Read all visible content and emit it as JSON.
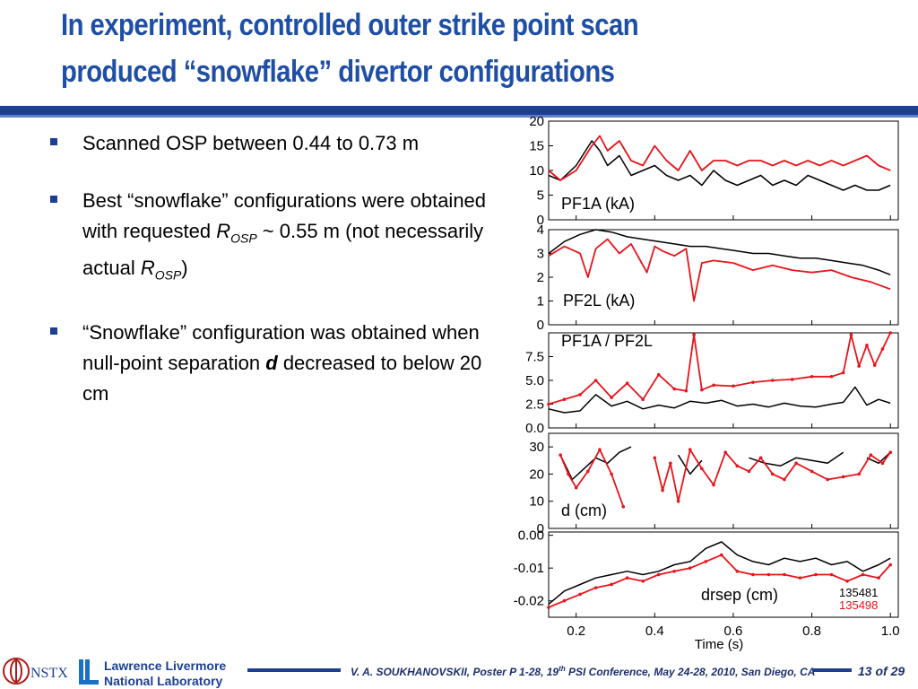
{
  "slide": {
    "title_line1": "In experiment, controlled outer strike point scan",
    "title_line2": "produced “snowflake” divertor configurations",
    "bullets": [
      {
        "text": "Scanned OSP between 0.44 to 0.73 m"
      },
      {
        "text_pre": "Best “snowflake” configurations were obtained with requested ",
        "sym1": "R",
        "sub1": "OSP",
        "text_mid": " ~ 0.55 m (not necessarily actual ",
        "sym2": "R",
        "sub2": "OSP",
        "text_post": ")"
      },
      {
        "text_pre": "“Snowflake” configuration was obtained when null-point separation ",
        "sym": "d",
        "text_post": " decreased to below 20 cm"
      }
    ],
    "footer": {
      "author": "V. A. SOUKHANOVSKII, Poster P 1-28, 19",
      "sup": "th",
      "rest": " PSI Conference, May 24-28, 2010, San Diego, CA",
      "page": "13 of 29"
    },
    "logos": {
      "nstx": "NSTX",
      "llnl_line1": "Lawrence Livermore",
      "llnl_line2": "National Laboratory"
    },
    "colors": {
      "title": "#1f4ea5",
      "bar": "#1c3f94",
      "red": "#e8141b",
      "black": "#000000"
    }
  },
  "chart_data": {
    "type": "line",
    "xlabel": "Time (s)",
    "xlim": [
      0.13,
      1.02
    ],
    "xticks": [
      "0.2",
      "0.4",
      "0.6",
      "0.8",
      "1.0"
    ],
    "shots": [
      "135481",
      "135498"
    ],
    "panels": [
      {
        "label": "PF1A (kA)",
        "ylim": [
          0,
          20
        ],
        "yticks": [
          "0",
          "5",
          "10",
          "15",
          "20"
        ],
        "series": [
          {
            "name": "135481",
            "color": "black",
            "x": [
              0.13,
              0.16,
              0.2,
              0.24,
              0.26,
              0.28,
              0.31,
              0.34,
              0.37,
              0.4,
              0.43,
              0.46,
              0.49,
              0.52,
              0.55,
              0.58,
              0.61,
              0.64,
              0.67,
              0.7,
              0.73,
              0.76,
              0.79,
              0.82,
              0.85,
              0.88,
              0.91,
              0.94,
              0.97,
              1.0
            ],
            "y": [
              9,
              8,
              11,
              16,
              14,
              11,
              13,
              9,
              10,
              11,
              9,
              8,
              9,
              7,
              10,
              8,
              7,
              8,
              9,
              7,
              8,
              7,
              9,
              8,
              7,
              6,
              7,
              6,
              6,
              7
            ]
          },
          {
            "name": "135498",
            "color": "red",
            "x": [
              0.13,
              0.16,
              0.2,
              0.24,
              0.26,
              0.28,
              0.31,
              0.34,
              0.37,
              0.4,
              0.43,
              0.46,
              0.49,
              0.52,
              0.55,
              0.58,
              0.61,
              0.64,
              0.67,
              0.7,
              0.73,
              0.76,
              0.79,
              0.82,
              0.85,
              0.88,
              0.91,
              0.94,
              0.97,
              1.0
            ],
            "y": [
              10,
              8,
              10,
              15,
              17,
              14,
              16,
              12,
              11,
              15,
              12,
              10,
              14,
              10,
              12,
              12,
              11,
              12,
              12,
              11,
              12,
              11,
              12,
              11,
              12,
              11,
              12,
              13,
              11,
              10
            ]
          }
        ]
      },
      {
        "label": "PF2L (kA)",
        "ylim": [
          0,
          4
        ],
        "yticks": [
          "0",
          "1",
          "2",
          "3",
          "4"
        ],
        "series": [
          {
            "name": "135481",
            "color": "black",
            "x": [
              0.13,
              0.17,
              0.21,
              0.25,
              0.29,
              0.33,
              0.37,
              0.41,
              0.45,
              0.49,
              0.53,
              0.57,
              0.61,
              0.65,
              0.69,
              0.73,
              0.77,
              0.81,
              0.85,
              0.89,
              0.93,
              0.97,
              1.0
            ],
            "y": [
              3.0,
              3.5,
              3.8,
              4.0,
              3.9,
              3.7,
              3.6,
              3.5,
              3.4,
              3.3,
              3.3,
              3.2,
              3.1,
              3.0,
              3.0,
              2.9,
              2.8,
              2.8,
              2.7,
              2.6,
              2.5,
              2.3,
              2.1
            ]
          },
          {
            "name": "135498",
            "color": "red",
            "x": [
              0.13,
              0.17,
              0.21,
              0.23,
              0.25,
              0.28,
              0.31,
              0.34,
              0.38,
              0.4,
              0.42,
              0.45,
              0.48,
              0.5,
              0.52,
              0.55,
              0.6,
              0.65,
              0.7,
              0.75,
              0.8,
              0.85,
              0.9,
              0.95,
              1.0
            ],
            "y": [
              2.9,
              3.3,
              3.0,
              2.0,
              3.2,
              3.6,
              3.0,
              3.4,
              2.2,
              3.3,
              3.1,
              2.9,
              3.2,
              1.0,
              2.6,
              2.7,
              2.6,
              2.3,
              2.5,
              2.3,
              2.2,
              2.3,
              2.0,
              1.8,
              1.5
            ]
          }
        ]
      },
      {
        "label": "PF1A / PF2L",
        "ylim": [
          0,
          10
        ],
        "yticks": [
          "0.0",
          "2.5",
          "5.0",
          "7.5"
        ],
        "series": [
          {
            "name": "135481",
            "color": "black",
            "x": [
              0.13,
              0.17,
              0.21,
              0.25,
              0.29,
              0.33,
              0.37,
              0.41,
              0.45,
              0.49,
              0.53,
              0.57,
              0.61,
              0.65,
              0.69,
              0.73,
              0.77,
              0.81,
              0.85,
              0.88,
              0.91,
              0.94,
              0.97,
              1.0
            ],
            "y": [
              2.0,
              1.6,
              1.8,
              3.5,
              2.3,
              2.8,
              2.0,
              2.4,
              2.1,
              2.8,
              2.6,
              2.9,
              2.3,
              2.5,
              2.2,
              2.6,
              2.3,
              2.2,
              2.5,
              2.7,
              4.3,
              2.4,
              3.0,
              2.6
            ]
          },
          {
            "name": "135498",
            "color": "red",
            "x": [
              0.13,
              0.17,
              0.21,
              0.25,
              0.29,
              0.33,
              0.37,
              0.41,
              0.45,
              0.48,
              0.5,
              0.52,
              0.55,
              0.6,
              0.65,
              0.7,
              0.75,
              0.8,
              0.85,
              0.88,
              0.9,
              0.92,
              0.94,
              0.96,
              0.98,
              1.0
            ],
            "y": [
              2.5,
              3.0,
              3.5,
              5.0,
              3.2,
              4.7,
              3.0,
              5.6,
              4.1,
              3.9,
              9.8,
              4.0,
              4.5,
              4.4,
              4.8,
              5.0,
              5.1,
              5.4,
              5.4,
              5.8,
              9.8,
              6.5,
              8.7,
              6.6,
              8.3,
              10
            ]
          }
        ]
      },
      {
        "label": "d (cm)",
        "ylim": [
          0,
          35
        ],
        "yticks": [
          "0",
          "10",
          "20",
          "30"
        ],
        "series": [
          {
            "name": "135481",
            "color": "black",
            "x": [
              0.16,
              0.19,
              0.22,
              0.25,
              0.28,
              0.31,
              0.34,
              null,
              0.46,
              0.49,
              0.52,
              null,
              0.64,
              0.68,
              0.72,
              0.76,
              0.8,
              0.84,
              0.88,
              null,
              0.94,
              0.97,
              1.0
            ],
            "y": [
              27,
              18,
              22,
              26,
              24,
              28,
              30,
              null,
              27,
              20,
              25,
              null,
              26,
              24,
              23,
              26,
              25,
              24,
              28,
              null,
              26,
              24,
              28
            ]
          },
          {
            "name": "135498",
            "color": "red",
            "x": [
              0.16,
              0.18,
              0.2,
              0.23,
              0.26,
              0.29,
              0.32,
              null,
              0.4,
              0.42,
              0.44,
              0.46,
              0.49,
              0.52,
              0.55,
              0.58,
              0.61,
              0.64,
              0.67,
              0.7,
              0.73,
              0.76,
              0.8,
              0.84,
              0.88,
              0.92,
              0.95,
              0.98,
              1.0
            ],
            "y": [
              27,
              20,
              15,
              21,
              29,
              20,
              8,
              null,
              26,
              14,
              24,
              10,
              29,
              22,
              16,
              28,
              23,
              21,
              26,
              20,
              18,
              24,
              21,
              18,
              19,
              20,
              27,
              24,
              28
            ]
          }
        ]
      },
      {
        "label": "drsep (cm)",
        "ylim": [
          -0.025,
          0.001
        ],
        "yticks": [
          "-0.02",
          "-0.01",
          "0.00"
        ],
        "series": [
          {
            "name": "135481",
            "color": "black",
            "x": [
              0.13,
              0.17,
              0.21,
              0.25,
              0.29,
              0.33,
              0.37,
              0.41,
              0.45,
              0.49,
              0.53,
              0.57,
              0.61,
              0.65,
              0.69,
              0.73,
              0.77,
              0.81,
              0.85,
              0.89,
              0.93,
              0.97,
              1.0
            ],
            "y": [
              -0.021,
              -0.017,
              -0.015,
              -0.013,
              -0.012,
              -0.011,
              -0.012,
              -0.011,
              -0.009,
              -0.008,
              -0.004,
              -0.002,
              -0.006,
              -0.008,
              -0.009,
              -0.007,
              -0.008,
              -0.007,
              -0.009,
              -0.008,
              -0.011,
              -0.009,
              -0.007
            ]
          },
          {
            "name": "135498",
            "color": "red",
            "x": [
              0.13,
              0.17,
              0.21,
              0.25,
              0.29,
              0.33,
              0.37,
              0.41,
              0.45,
              0.49,
              0.53,
              0.57,
              0.61,
              0.65,
              0.69,
              0.73,
              0.77,
              0.81,
              0.85,
              0.89,
              0.93,
              0.97,
              1.0
            ],
            "y": [
              -0.022,
              -0.02,
              -0.018,
              -0.016,
              -0.015,
              -0.013,
              -0.014,
              -0.012,
              -0.011,
              -0.01,
              -0.008,
              -0.006,
              -0.011,
              -0.012,
              -0.012,
              -0.012,
              -0.013,
              -0.012,
              -0.012,
              -0.014,
              -0.012,
              -0.013,
              -0.009
            ]
          }
        ]
      }
    ]
  }
}
